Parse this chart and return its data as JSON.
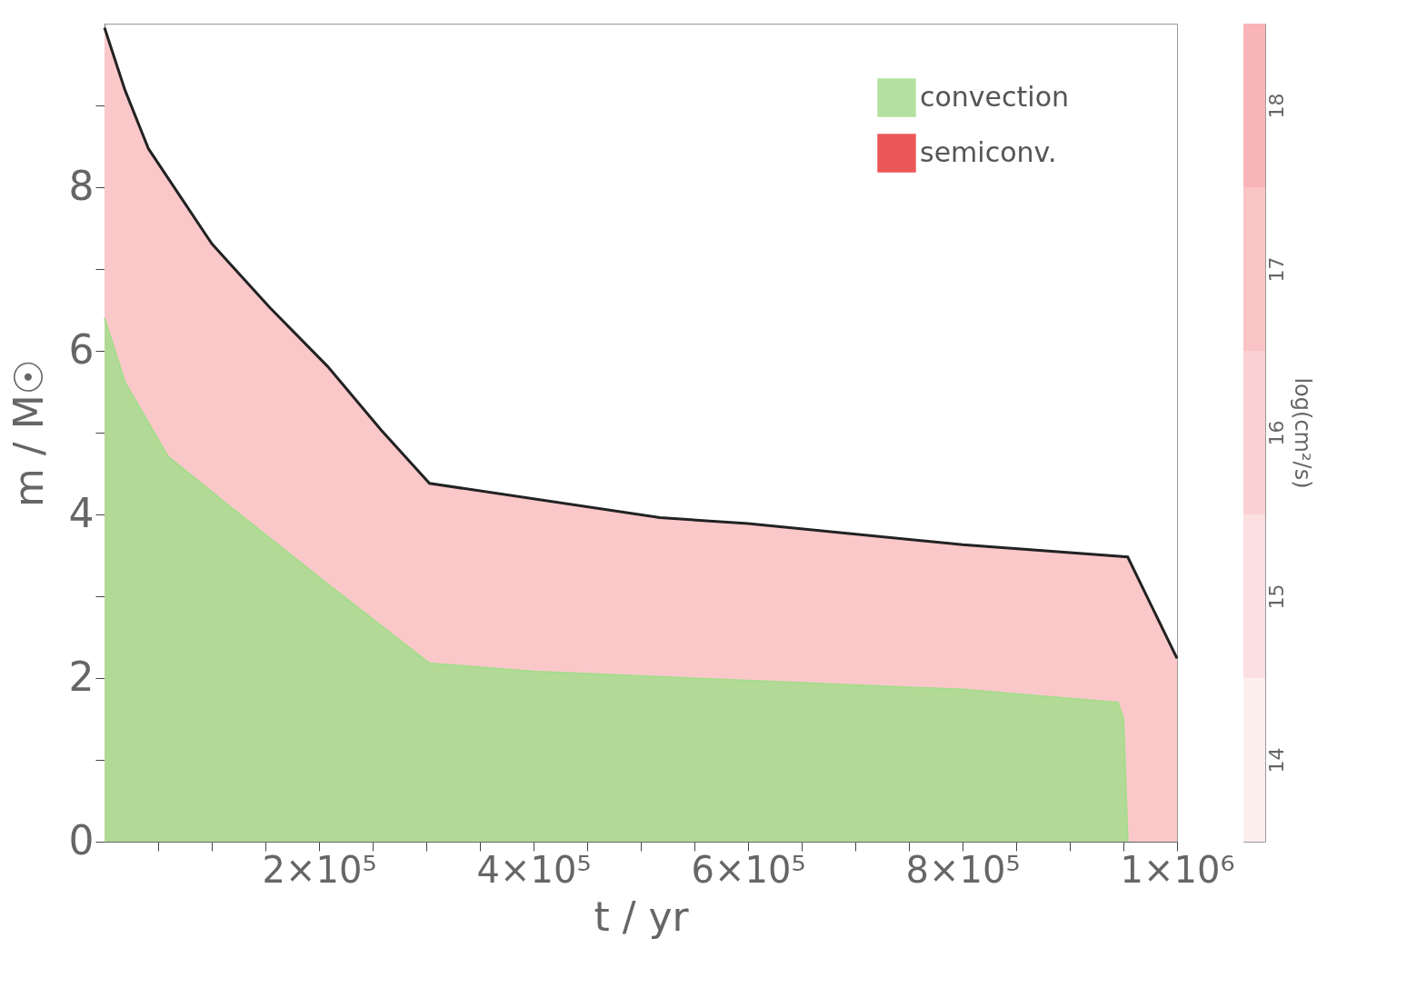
{
  "chart_data": {
    "type": "area",
    "xlabel": "t / yr",
    "ylabel": "m / M☉",
    "clabel": "log(cm²/s)",
    "xlim": [
      0,
      1000000
    ],
    "ylim": [
      0,
      10
    ],
    "xticks": [
      {
        "value": 50000,
        "label": null
      },
      {
        "value": 100000,
        "label": null
      },
      {
        "value": 150000,
        "label": null
      },
      {
        "value": 200000,
        "label": "2×10⁵"
      },
      {
        "value": 250000,
        "label": null
      },
      {
        "value": 300000,
        "label": null
      },
      {
        "value": 350000,
        "label": null
      },
      {
        "value": 400000,
        "label": "4×10⁵"
      },
      {
        "value": 450000,
        "label": null
      },
      {
        "value": 500000,
        "label": null
      },
      {
        "value": 550000,
        "label": null
      },
      {
        "value": 600000,
        "label": "6×10⁵"
      },
      {
        "value": 650000,
        "label": null
      },
      {
        "value": 700000,
        "label": null
      },
      {
        "value": 750000,
        "label": null
      },
      {
        "value": 800000,
        "label": "8×10⁵"
      },
      {
        "value": 850000,
        "label": null
      },
      {
        "value": 900000,
        "label": null
      },
      {
        "value": 950000,
        "label": null
      },
      {
        "value": 1000000,
        "label": "1×10⁶"
      }
    ],
    "yticks": [
      0,
      {
        "value": 1,
        "label": null
      },
      2,
      {
        "value": 3,
        "label": null
      },
      4,
      {
        "value": 5,
        "label": null
      },
      6,
      {
        "value": 7,
        "label": null
      },
      8,
      {
        "value": 9,
        "label": null
      }
    ],
    "clim": [
      13.5,
      18.5
    ],
    "cticks": [
      14,
      15,
      16,
      17,
      18
    ],
    "legend": "top right",
    "grid": false,
    "x": [
      0,
      19000,
      41000,
      100000,
      154000,
      208000,
      258000,
      303000,
      518000,
      600000,
      800000,
      954000,
      1000000
    ],
    "series": [
      {
        "color": "#fbc8ca",
        "values": [
          9.95,
          9.19,
          8.47,
          7.31,
          6.53,
          5.81,
          5.03,
          4.38,
          3.96,
          3.89,
          3.63,
          3.48,
          2.24
        ]
      },
      {
        "name": "convection",
        "color": "#a6dc8e",
        "x": [
          0,
          19000,
          59000,
          127000,
          208000,
          303000,
          400000,
          600000,
          800000,
          945000,
          950000,
          954000
        ],
        "values": [
          6.4,
          5.62,
          4.71,
          3.99,
          3.15,
          2.18,
          2.08,
          1.97,
          1.86,
          1.7,
          1.5,
          0
        ]
      },
      {
        "name": "semiconv.",
        "color": "#e8383c",
        "values": [
          null,
          null,
          null,
          null,
          null,
          null,
          null,
          null,
          null,
          null,
          null,
          null,
          null
        ]
      }
    ]
  }
}
